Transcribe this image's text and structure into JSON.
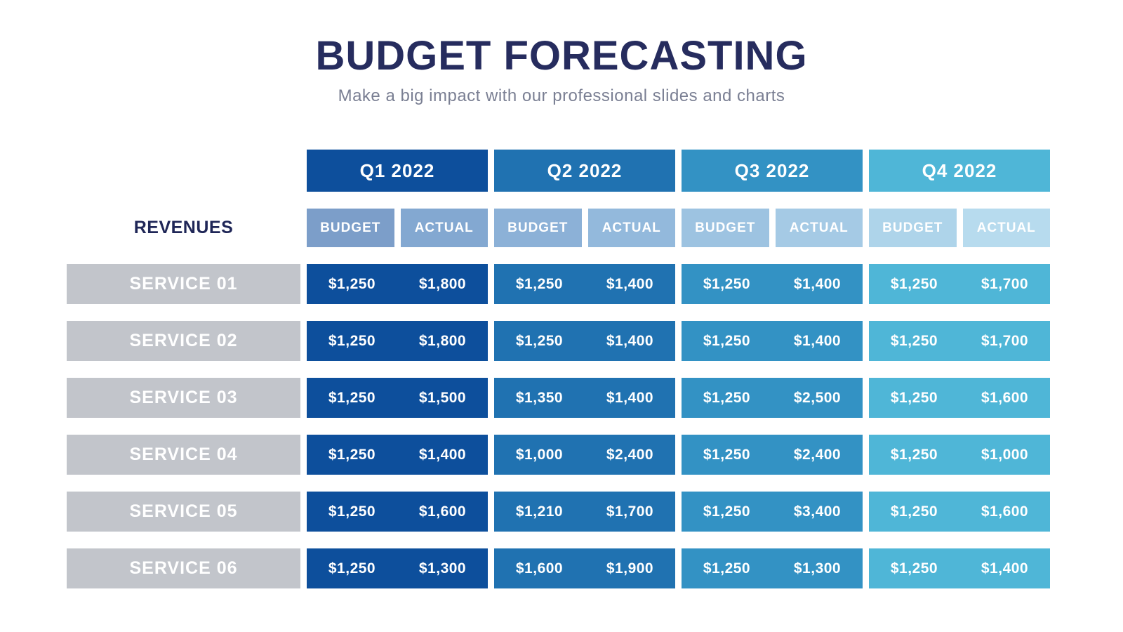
{
  "header": {
    "title": "BUDGET FORECASTING",
    "subtitle": "Make a big impact with our professional slides and charts"
  },
  "table": {
    "row_group_label": "REVENUES",
    "subheaders": {
      "budget": "BUDGET",
      "actual": "ACTUAL"
    },
    "quarters": [
      {
        "label": "Q1 2022",
        "color": "#0d4f9c",
        "budget_color": "#7c9ec9",
        "actual_color": "#83a8d1"
      },
      {
        "label": "Q2 2022",
        "color": "#2072b1",
        "budget_color": "#8cb1d7",
        "actual_color": "#93b9dc"
      },
      {
        "label": "Q3 2022",
        "color": "#3392c4",
        "budget_color": "#9dc3e1",
        "actual_color": "#a5cae5"
      },
      {
        "label": "Q4 2022",
        "color": "#4fb6d7",
        "budget_color": "#aed4ea",
        "actual_color": "#b7dbee"
      }
    ],
    "rows": [
      {
        "label": "SERVICE 01",
        "values": [
          [
            "$1,250",
            "$1,800"
          ],
          [
            "$1,250",
            "$1,400"
          ],
          [
            "$1,250",
            "$1,400"
          ],
          [
            "$1,250",
            "$1,700"
          ]
        ]
      },
      {
        "label": "SERVICE 02",
        "values": [
          [
            "$1,250",
            "$1,800"
          ],
          [
            "$1,250",
            "$1,400"
          ],
          [
            "$1,250",
            "$1,400"
          ],
          [
            "$1,250",
            "$1,700"
          ]
        ]
      },
      {
        "label": "SERVICE 03",
        "values": [
          [
            "$1,250",
            "$1,500"
          ],
          [
            "$1,350",
            "$1,400"
          ],
          [
            "$1,250",
            "$2,500"
          ],
          [
            "$1,250",
            "$1,600"
          ]
        ]
      },
      {
        "label": "SERVICE 04",
        "values": [
          [
            "$1,250",
            "$1,400"
          ],
          [
            "$1,000",
            "$2,400"
          ],
          [
            "$1,250",
            "$2,400"
          ],
          [
            "$1,250",
            "$1,000"
          ]
        ]
      },
      {
        "label": "SERVICE 05",
        "values": [
          [
            "$1,250",
            "$1,600"
          ],
          [
            "$1,210",
            "$1,700"
          ],
          [
            "$1,250",
            "$3,400"
          ],
          [
            "$1,250",
            "$1,600"
          ]
        ]
      },
      {
        "label": "SERVICE 06",
        "values": [
          [
            "$1,250",
            "$1,300"
          ],
          [
            "$1,600",
            "$1,900"
          ],
          [
            "$1,250",
            "$1,300"
          ],
          [
            "$1,250",
            "$1,400"
          ]
        ]
      }
    ]
  },
  "colors": {
    "title": "#262c5e",
    "subtitle": "#7a7f93",
    "service_label_bg": "#c2c5cb",
    "revenues_text": "#1f2657",
    "background": "#ffffff"
  },
  "chart_data": {
    "type": "table",
    "title": "BUDGET FORECASTING",
    "subtitle": "Make a big impact with our professional slides and charts",
    "row_group": "REVENUES",
    "columns": [
      "Q1 2022 Budget",
      "Q1 2022 Actual",
      "Q2 2022 Budget",
      "Q2 2022 Actual",
      "Q3 2022 Budget",
      "Q3 2022 Actual",
      "Q4 2022 Budget",
      "Q4 2022 Actual"
    ],
    "row_labels": [
      "SERVICE 01",
      "SERVICE 02",
      "SERVICE 03",
      "SERVICE 04",
      "SERVICE 05",
      "SERVICE 06"
    ],
    "values": [
      [
        1250,
        1800,
        1250,
        1400,
        1250,
        1400,
        1250,
        1700
      ],
      [
        1250,
        1800,
        1250,
        1400,
        1250,
        1400,
        1250,
        1700
      ],
      [
        1250,
        1500,
        1350,
        1400,
        1250,
        2500,
        1250,
        1600
      ],
      [
        1250,
        1400,
        1000,
        2400,
        1250,
        2400,
        1250,
        1000
      ],
      [
        1250,
        1600,
        1210,
        1700,
        1250,
        3400,
        1250,
        1600
      ],
      [
        1250,
        1300,
        1600,
        1900,
        1250,
        1300,
        1250,
        1400
      ]
    ],
    "currency": "USD"
  }
}
